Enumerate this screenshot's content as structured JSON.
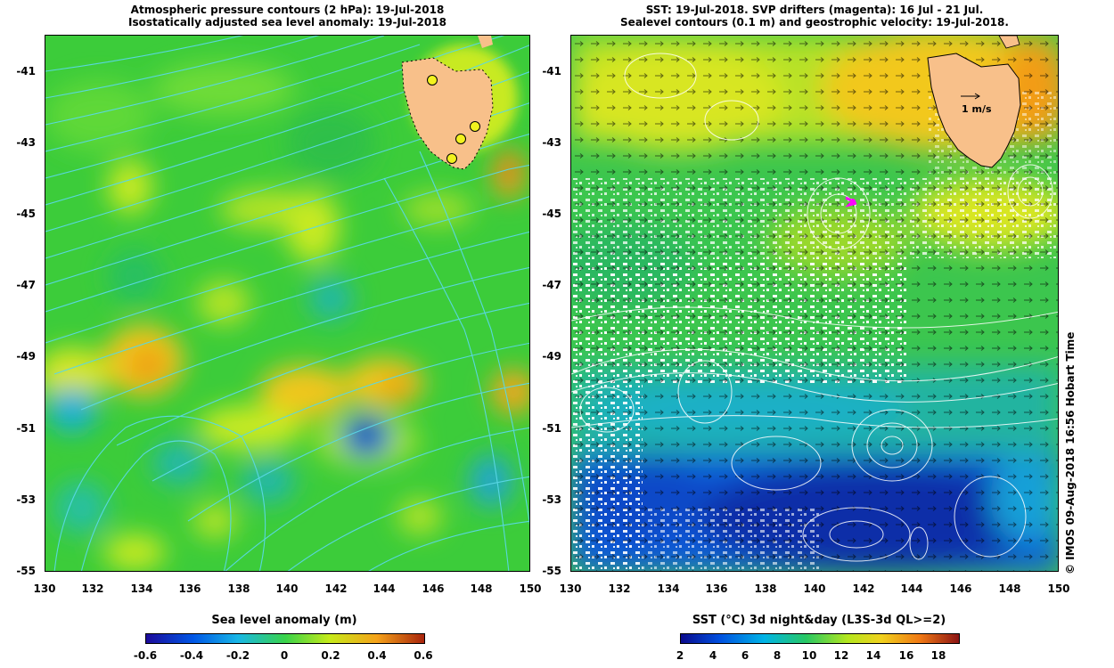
{
  "left_map": {
    "title_line1": "Atmospheric pressure contours (2 hPa): 19-Jul-2018",
    "title_line2": "Isostatically adjusted sea level anomaly: 19-Jul-2018",
    "colorbar_title": "Sea level anomaly (m)",
    "colorbar_ticks": [
      "-0.6",
      "-0.4",
      "-0.2",
      "0",
      "0.2",
      "0.4",
      "0.6"
    ]
  },
  "right_map": {
    "title_line1": "SST: 19-Jul-2018. SVP drifters (magenta): 16 Jul - 21 Jul.",
    "title_line2": "Sealevel contours (0.1 m) and geostrophic velocity: 19-Jul-2018.",
    "colorbar_title": "SST (°C) 3d night&day (L3S-3d QL>=2)",
    "colorbar_ticks": [
      "2",
      "4",
      "6",
      "8",
      "10",
      "12",
      "14",
      "16",
      "18"
    ],
    "velocity_scale_label": "1 m/s"
  },
  "y_ticks": [
    "-41",
    "-43",
    "-45",
    "-47",
    "-49",
    "-51",
    "-53",
    "-55"
  ],
  "x_ticks": [
    "130",
    "132",
    "134",
    "136",
    "138",
    "140",
    "142",
    "144",
    "146",
    "148",
    "150"
  ],
  "credit": "© IMOS 09-Aug-2018 16:56 Hobart Time",
  "colors": {
    "land": "#f8c08a",
    "sla_ramp": [
      "#1c0a9a",
      "#0057e6",
      "#19b7e6",
      "#39d34a",
      "#c6ea1a",
      "#f5a21a",
      "#a8240c"
    ],
    "sst_ramp": [
      "#0a0a8c",
      "#0050e0",
      "#00b4e6",
      "#28c864",
      "#b4e61e",
      "#f0d21e",
      "#f07814",
      "#8c1414"
    ],
    "drifter": "#ff00ff"
  }
}
